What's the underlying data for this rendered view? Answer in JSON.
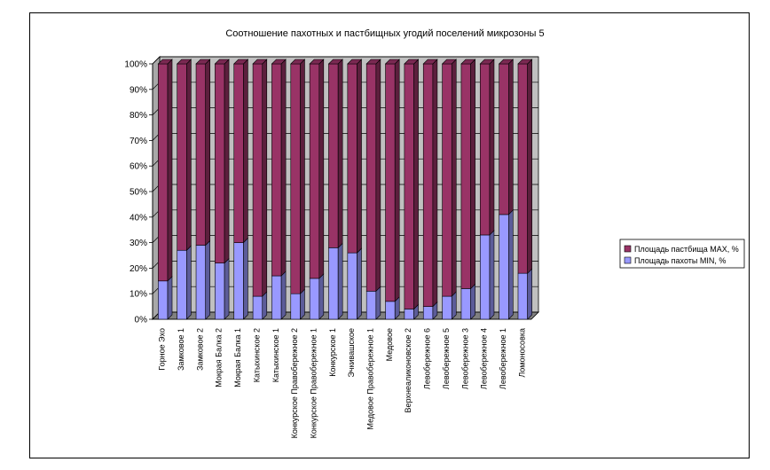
{
  "chart_data": {
    "type": "bar",
    "stacked": "percent",
    "style": "3d",
    "title": "Соотношение пахотных и пастбищных угодий поселений микрозоны 5",
    "xlabel": "",
    "ylabel": "",
    "ylim": [
      0,
      100
    ],
    "yticks": [
      "0%",
      "10%",
      "20%",
      "30%",
      "40%",
      "50%",
      "60%",
      "70%",
      "80%",
      "90%",
      "100%"
    ],
    "grid": true,
    "legend_position": "right",
    "categories": [
      "Горное Эхо",
      "Замковое 1",
      "Замковое 2",
      "Мокрая Балка 2",
      "Мокрая Балка 1",
      "Катыхинское 2",
      "Катыхинское 1",
      "Конкурское Правобережное 2",
      "Конкурское Правобережное 1",
      "Конкурское 1",
      "Эчкивашское",
      "Медовое Правобережное 1",
      "Медовое",
      "Верхнеаликоновское 2",
      "Левобережное 6",
      "Левобережное 5",
      "Левобережное 3",
      "Левобережное 4",
      "Левобережное 1",
      "Ломоносовка"
    ],
    "series": [
      {
        "name": "Площадь пахоты MIN, %",
        "color": "#9999ff",
        "values": [
          15,
          27,
          29,
          22,
          30,
          9,
          17,
          10,
          16,
          28,
          26,
          11,
          7,
          4,
          5,
          9,
          12,
          33,
          41,
          18
        ]
      },
      {
        "name": "Площадь пастбища MAX, %",
        "color": "#993366",
        "values": [
          85,
          73,
          71,
          78,
          70,
          91,
          83,
          90,
          84,
          72,
          74,
          89,
          93,
          96,
          95,
          91,
          88,
          67,
          59,
          82
        ]
      }
    ],
    "legend_order": [
      "Площадь пастбища MAX, %",
      "Площадь пахоты MIN, %"
    ],
    "colors": {
      "wall": "#c0c0c0",
      "floor": "#808080",
      "grid": "#000000"
    }
  }
}
